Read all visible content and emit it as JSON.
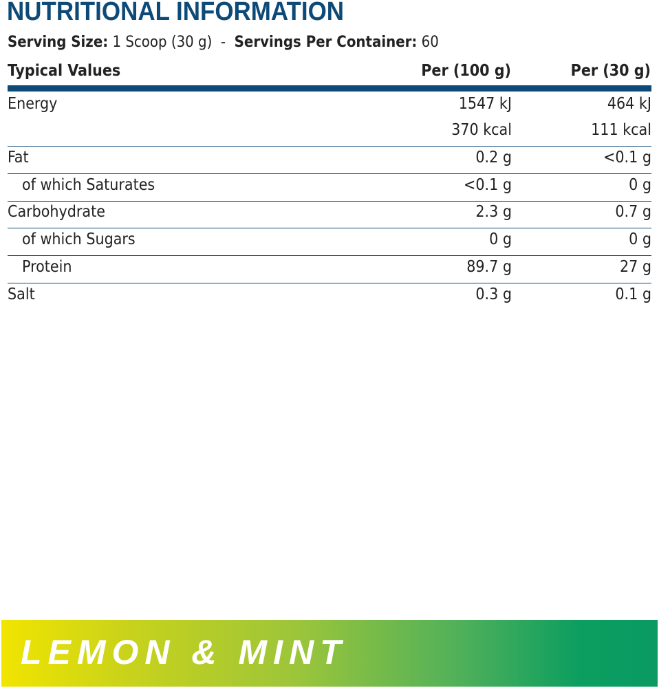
{
  "title": "NUTRITIONAL INFORMATION",
  "serving": {
    "size_label": "Serving Size:",
    "size_value": "1 Scoop (30 g)",
    "separator": "-",
    "per_container_label": "Servings Per Container:",
    "per_container_value": "60"
  },
  "table": {
    "headers": [
      "Typical Values",
      "Per (100 g)",
      "Per (30 g)"
    ],
    "rows": [
      {
        "label": "Energy",
        "per100": "1547 kJ",
        "per30": "464 kJ"
      },
      {
        "label": "",
        "per100": "370 kcal",
        "per30": "111 kcal"
      },
      {
        "label": "Fat",
        "per100": "0.2 g",
        "per30": "<0.1 g"
      },
      {
        "label": "of which Saturates",
        "per100": "<0.1 g",
        "per30": "0 g"
      },
      {
        "label": "Carbohydrate",
        "per100": "2.3 g",
        "per30": "0.7 g"
      },
      {
        "label": "of which Sugars",
        "per100": "0 g",
        "per30": "0 g"
      },
      {
        "label": "Protein",
        "per100": "89.7 g",
        "per30": "27 g"
      },
      {
        "label": "Salt",
        "per100": "0.3 g",
        "per30": "0.1 g"
      }
    ]
  },
  "flavour": "LEMON & MINT",
  "colors": {
    "brand_blue": "#0d4a78",
    "gradient_start": "#f1e400",
    "gradient_end": "#0a9a62"
  }
}
